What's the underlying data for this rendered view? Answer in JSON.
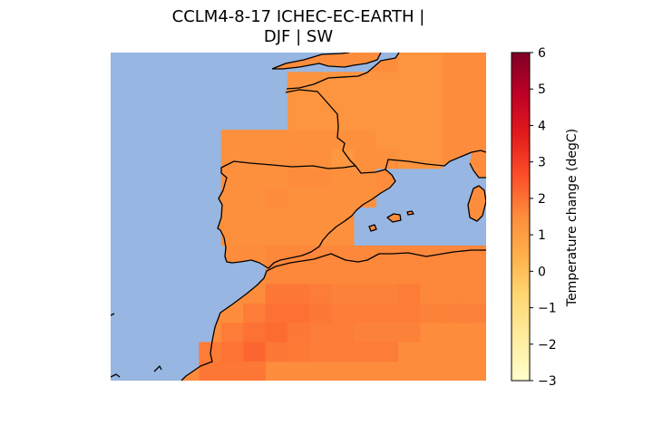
{
  "title": {
    "line1": "CCLM4-8-17 ICHEC-EC-EARTH |",
    "line2": "DJF | SW"
  },
  "colorbar": {
    "label": "Temperature change (degC)",
    "min": -3,
    "max": 6,
    "ticks": [
      {
        "value": 6,
        "label": "6"
      },
      {
        "value": 5,
        "label": "5"
      },
      {
        "value": 4,
        "label": "4"
      },
      {
        "value": 3,
        "label": "3"
      },
      {
        "value": 2,
        "label": "2"
      },
      {
        "value": 1,
        "label": "1"
      },
      {
        "value": 0,
        "label": "0"
      },
      {
        "value": -1,
        "label": "−1"
      },
      {
        "value": -2,
        "label": "−2"
      },
      {
        "value": -3,
        "label": "−3"
      }
    ],
    "colors": [
      "#ffffcc",
      "#ffeda0",
      "#fed976",
      "#feb24c",
      "#fd8d3c",
      "#fc4e2a",
      "#e31a1c",
      "#bd0026",
      "#800026"
    ]
  },
  "colors": {
    "sea": "#97b6e1",
    "coast": "#000000",
    "land_default": "#fd8d3c"
  },
  "chart_data": {
    "type": "heatmap",
    "variable": "Temperature change (degC)",
    "grid_rows_north_to_south": [
      [
        null,
        null,
        null,
        null,
        null,
        null,
        null,
        null,
        null,
        null,
        null,
        null,
        null,
        1.3,
        1.3,
        null,
        null
      ],
      [
        null,
        null,
        null,
        null,
        null,
        null,
        null,
        null,
        1.3,
        1.3,
        1.3,
        1.3,
        1.3,
        1.3,
        1.3,
        null,
        null
      ],
      [
        null,
        null,
        null,
        null,
        null,
        null,
        null,
        null,
        1.3,
        1.3,
        1.3,
        1.3,
        1.3,
        1.3,
        1.3,
        null,
        null
      ],
      [
        null,
        null,
        null,
        null,
        null,
        null,
        null,
        null,
        1.3,
        1.3,
        1.3,
        1.3,
        1.3,
        1.3,
        1.3,
        null,
        null
      ],
      [
        null,
        null,
        null,
        null,
        null,
        1.4,
        1.4,
        1.4,
        1.4,
        1.4,
        1.4,
        1.4,
        1.3,
        1.3,
        1.3,
        null,
        null
      ],
      [
        null,
        null,
        null,
        null,
        null,
        1.4,
        1.4,
        1.4,
        1.45,
        1.4,
        1.2,
        1.4,
        1.4,
        1.3,
        1.3,
        null,
        null
      ],
      [
        null,
        null,
        null,
        null,
        null,
        1.4,
        1.4,
        1.4,
        1.5,
        1.5,
        1.4,
        1.4,
        null,
        null,
        null,
        null,
        null
      ],
      [
        null,
        null,
        null,
        null,
        null,
        1.4,
        1.4,
        1.5,
        1.4,
        1.4,
        1.4,
        1.4,
        null,
        null,
        null,
        null,
        null
      ],
      [
        null,
        null,
        null,
        null,
        null,
        1.4,
        1.4,
        1.4,
        1.4,
        1.4,
        1.4,
        null,
        null,
        null,
        null,
        null,
        null
      ],
      [
        null,
        null,
        null,
        null,
        null,
        1.4,
        1.4,
        1.4,
        1.4,
        1.4,
        1.4,
        null,
        null,
        null,
        null,
        null,
        null
      ],
      [
        null,
        null,
        null,
        null,
        null,
        null,
        null,
        1.6,
        1.6,
        1.6,
        1.6,
        1.6,
        1.6,
        1.6,
        1.6,
        1.6,
        1.6
      ],
      [
        null,
        null,
        null,
        null,
        null,
        null,
        null,
        1.6,
        1.6,
        1.6,
        1.6,
        1.6,
        1.6,
        1.6,
        1.6,
        1.6,
        1.6
      ],
      [
        null,
        null,
        null,
        null,
        null,
        null,
        null,
        1.9,
        1.9,
        1.8,
        1.7,
        1.7,
        1.7,
        1.8,
        1.6,
        1.6,
        1.6
      ],
      [
        null,
        null,
        null,
        null,
        null,
        null,
        1.8,
        2.0,
        2.0,
        1.9,
        1.8,
        1.8,
        1.8,
        1.8,
        1.7,
        1.7,
        1.7
      ],
      [
        null,
        null,
        null,
        null,
        null,
        1.8,
        2.0,
        2.1,
        1.9,
        1.8,
        1.8,
        1.7,
        1.7,
        1.7,
        null,
        null,
        null
      ],
      [
        null,
        null,
        null,
        null,
        1.8,
        1.95,
        2.2,
        1.9,
        1.85,
        1.8,
        1.8,
        1.8,
        1.8,
        null,
        null,
        null,
        null
      ],
      [
        null,
        null,
        null,
        null,
        1.9,
        1.9,
        1.9,
        null,
        null,
        null,
        null,
        null,
        null,
        null,
        null,
        null,
        null
      ]
    ]
  }
}
